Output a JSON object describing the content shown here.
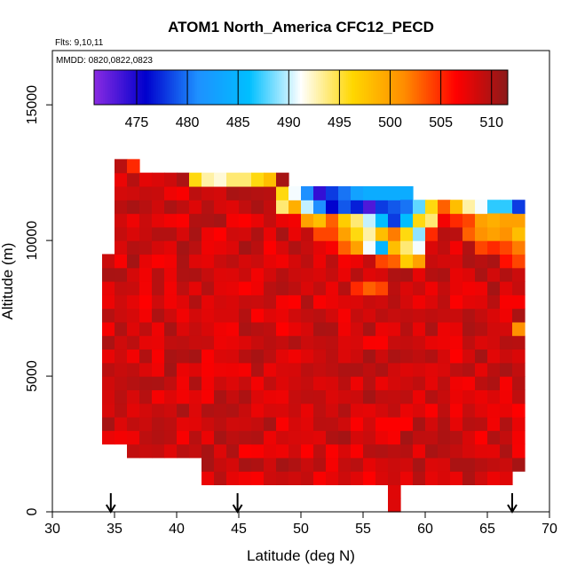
{
  "chart_data": {
    "type": "heatmap",
    "title": "ATOM1 North_America CFC12_PECD",
    "flights_note": "Flts: 9,10,11",
    "dates_note": "MMDD: 0820,0822,0823",
    "xlabel": "Latitude (deg N)",
    "ylabel": "Altitude (m)",
    "xlim": [
      30,
      70
    ],
    "ylim": [
      0,
      17000
    ],
    "x_ticks": [
      "30",
      "35",
      "40",
      "45",
      "50",
      "55",
      "60",
      "65",
      "70"
    ],
    "y_ticks": [
      "0",
      "5000",
      "10000",
      "15000"
    ],
    "colorbar": {
      "min": 470.8,
      "max": 511.6,
      "ticks": [
        "475",
        "480",
        "485",
        "490",
        "495",
        "500",
        "505",
        "510"
      ],
      "stops": [
        "#8a2be2",
        "#0000cd",
        "#1e90ff",
        "#00bfff",
        "#ffffff",
        "#ffd700",
        "#ff8c00",
        "#ff0000",
        "#8b1a1a"
      ]
    },
    "cell_size": {
      "lat": 1.0,
      "alt": 500
    },
    "default_value": 508.5,
    "bulk_region": {
      "lat_start": 34,
      "lat_end": 68,
      "alt_bottom_by_lat": [
        2500,
        2500,
        2000,
        2000,
        2000,
        2000,
        2000,
        2000,
        1000,
        1000,
        1000,
        1000,
        1000,
        1000,
        1000,
        1000,
        1000,
        1000,
        1000,
        1000,
        1000,
        1000,
        1000,
        0,
        1000,
        1000,
        1000,
        1000,
        1000,
        1000,
        1000,
        1000,
        1000,
        1500
      ],
      "alt_top_by_lat": [
        9500,
        13000,
        12500,
        12500,
        12500,
        12500,
        12500,
        12500,
        12500,
        12500,
        12500,
        12500,
        12500,
        12500,
        12500,
        12000,
        12000,
        12000,
        12000,
        12000,
        12000,
        11500,
        11500,
        11500,
        11000,
        11000,
        11000,
        11000,
        11000,
        11000,
        11000,
        10500,
        10500,
        11000
      ]
    },
    "cells": [
      [
        40.5,
        12250,
        505
      ],
      [
        41,
        12250,
        496
      ],
      [
        42,
        12250,
        493
      ],
      [
        43,
        12250,
        492
      ],
      [
        44,
        12250,
        494
      ],
      [
        45,
        12250,
        494
      ],
      [
        46,
        12250,
        496
      ],
      [
        47,
        12250,
        498
      ],
      [
        48,
        11750,
        496
      ],
      [
        49,
        11750,
        491
      ],
      [
        50,
        11750,
        481
      ],
      [
        51,
        11750,
        474
      ],
      [
        52,
        11750,
        478
      ],
      [
        53,
        11750,
        480
      ],
      [
        54,
        11750,
        483
      ],
      [
        55,
        11750,
        484
      ],
      [
        56,
        11750,
        484
      ],
      [
        57,
        11750,
        484
      ],
      [
        58,
        11750,
        484
      ],
      [
        48,
        11250,
        494
      ],
      [
        49,
        11250,
        499
      ],
      [
        50,
        11250,
        490
      ],
      [
        51,
        11250,
        481
      ],
      [
        52,
        11250,
        476
      ],
      [
        53,
        11250,
        479
      ],
      [
        54,
        11250,
        477
      ],
      [
        55,
        11250,
        473
      ],
      [
        56,
        11250,
        478
      ],
      [
        57,
        11250,
        479
      ],
      [
        58,
        11250,
        480
      ],
      [
        59,
        11250,
        488
      ],
      [
        60,
        11250,
        496
      ],
      [
        61,
        11250,
        503
      ],
      [
        62,
        11250,
        498
      ],
      [
        63,
        11250,
        493
      ],
      [
        64,
        11250,
        491
      ],
      [
        65,
        11250,
        487
      ],
      [
        66,
        11250,
        487
      ],
      [
        67,
        11250,
        478
      ],
      [
        50,
        10750,
        500
      ],
      [
        51,
        10750,
        498
      ],
      [
        52,
        10750,
        503
      ],
      [
        53,
        10750,
        497
      ],
      [
        54,
        10750,
        494
      ],
      [
        55,
        10750,
        490
      ],
      [
        56,
        10750,
        486
      ],
      [
        57,
        10750,
        478
      ],
      [
        58,
        10750,
        486
      ],
      [
        59,
        10750,
        496
      ],
      [
        60,
        10750,
        494
      ],
      [
        61,
        10750,
        507
      ],
      [
        62,
        10750,
        505
      ],
      [
        63,
        10750,
        504
      ],
      [
        64,
        10750,
        500
      ],
      [
        65,
        10750,
        499
      ],
      [
        66,
        10750,
        500
      ],
      [
        67,
        10750,
        500
      ],
      [
        51,
        10250,
        504
      ],
      [
        52,
        10250,
        504
      ],
      [
        53,
        10250,
        500
      ],
      [
        54,
        10250,
        496
      ],
      [
        55,
        10250,
        493
      ],
      [
        56,
        10250,
        498
      ],
      [
        57,
        10250,
        502
      ],
      [
        58,
        10250,
        496
      ],
      [
        59,
        10250,
        489
      ],
      [
        60,
        10250,
        505
      ],
      [
        63,
        10250,
        503
      ],
      [
        64,
        10250,
        501
      ],
      [
        65,
        10250,
        500
      ],
      [
        66,
        10250,
        501
      ],
      [
        67,
        10250,
        498
      ],
      [
        53,
        9750,
        503
      ],
      [
        54,
        9750,
        500
      ],
      [
        55,
        9750,
        491
      ],
      [
        56,
        9750,
        485
      ],
      [
        57,
        9750,
        498
      ],
      [
        58,
        9750,
        494
      ],
      [
        59,
        9750,
        491
      ],
      [
        62,
        9750,
        507
      ],
      [
        64,
        9750,
        504
      ],
      [
        65,
        9750,
        505
      ],
      [
        66,
        9750,
        504
      ],
      [
        67,
        9750,
        502
      ],
      [
        56,
        9250,
        504
      ],
      [
        57,
        9250,
        503
      ],
      [
        58,
        9250,
        497
      ],
      [
        59,
        9250,
        500
      ],
      [
        66,
        9250,
        506
      ],
      [
        67,
        9250,
        504
      ],
      [
        54,
        8250,
        505
      ],
      [
        55,
        8250,
        503
      ],
      [
        56,
        8250,
        504
      ],
      [
        67,
        6750,
        501
      ],
      [
        36,
        12750,
        505
      ]
    ],
    "arrows_lat": [
      34.7,
      44.9,
      67.0
    ]
  }
}
